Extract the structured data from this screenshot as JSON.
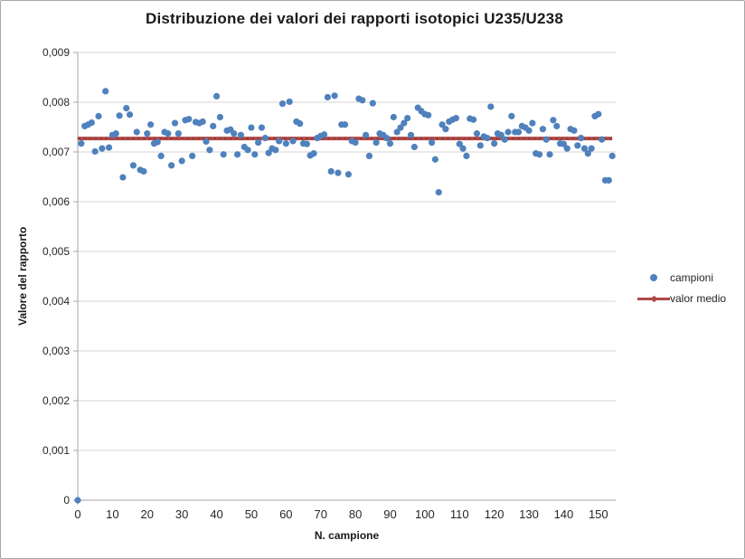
{
  "colors": {
    "points": "#4F81BD",
    "mean_line": "#B04A47",
    "mean_line_dash": "#963634",
    "grid": "#D6D6D6",
    "axis": "#A6A6A6",
    "tick_text": "#262626"
  },
  "chart_data": {
    "type": "scatter",
    "title": "Distribuzione dei valori dei rapporti isotopici U235/U238",
    "xlabel": "N. campione",
    "ylabel": "Valore del rapporto",
    "axes": {
      "xlim": [
        0,
        155
      ],
      "ylim": [
        0,
        0.009
      ],
      "xtick_values": [
        0,
        10,
        20,
        30,
        40,
        50,
        60,
        70,
        80,
        90,
        100,
        110,
        120,
        130,
        140,
        150
      ],
      "xtick_labels": [
        "0",
        "10",
        "20",
        "30",
        "40",
        "50",
        "60",
        "70",
        "80",
        "90",
        "100",
        "110",
        "120",
        "130",
        "140",
        "150"
      ],
      "ytick_values": [
        0,
        0.001,
        0.002,
        0.003,
        0.004,
        0.005,
        0.006,
        0.007,
        0.008,
        0.009
      ],
      "ytick_labels": [
        "0",
        "0,001",
        "0,002",
        "0,003",
        "0,004",
        "0,005",
        "0,006",
        "0,007",
        "0,008",
        "0,009"
      ],
      "grid": "horizontal"
    },
    "legend": {
      "position": "right",
      "entries": [
        {
          "label": "campioni",
          "marker": "dot"
        },
        {
          "label": "valor medio",
          "marker": "line"
        }
      ]
    },
    "series": [
      {
        "name": "campioni",
        "x_rule": "sample index 0..154",
        "y": [
          0,
          0.00717,
          0.00752,
          0.00755,
          0.00759,
          0.00701,
          0.00772,
          0.00707,
          0.00822,
          0.00709,
          0.00734,
          0.00737,
          0.00773,
          0.00649,
          0.00788,
          0.00775,
          0.00673,
          0.0074,
          0.00664,
          0.00661,
          0.00737,
          0.00755,
          0.00717,
          0.0072,
          0.00692,
          0.0074,
          0.00737,
          0.00673,
          0.00758,
          0.00737,
          0.00682,
          0.00764,
          0.00766,
          0.00692,
          0.0076,
          0.00758,
          0.00761,
          0.00721,
          0.00704,
          0.00752,
          0.00812,
          0.0077,
          0.00695,
          0.00743,
          0.00745,
          0.00737,
          0.00695,
          0.00734,
          0.0071,
          0.00704,
          0.00749,
          0.00695,
          0.00719,
          0.00749,
          0.00728,
          0.00698,
          0.00707,
          0.00704,
          0.00722,
          0.00797,
          0.00717,
          0.00801,
          0.00722,
          0.00761,
          0.00757,
          0.00717,
          0.00716,
          0.00693,
          0.00697,
          0.00728,
          0.00732,
          0.00735,
          0.0081,
          0.00661,
          0.00813,
          0.00658,
          0.00755,
          0.00755,
          0.00655,
          0.00722,
          0.00719,
          0.00807,
          0.00804,
          0.00734,
          0.00692,
          0.00798,
          0.00719,
          0.00737,
          0.00734,
          0.00728,
          0.00717,
          0.0077,
          0.0074,
          0.00749,
          0.00758,
          0.00768,
          0.00734,
          0.0071,
          0.00789,
          0.00782,
          0.00776,
          0.00774,
          0.00719,
          0.00685,
          0.00619,
          0.00755,
          0.00746,
          0.00761,
          0.00765,
          0.00768,
          0.00716,
          0.00707,
          0.00692,
          0.00767,
          0.00765,
          0.00737,
          0.00713,
          0.00731,
          0.00728,
          0.00791,
          0.00717,
          0.00737,
          0.00734,
          0.00725,
          0.0074,
          0.00772,
          0.0074,
          0.0074,
          0.00752,
          0.00749,
          0.00743,
          0.00758,
          0.00697,
          0.00695,
          0.00746,
          0.00725,
          0.00695,
          0.00764,
          0.00752,
          0.00717,
          0.00716,
          0.00707,
          0.00746,
          0.00743,
          0.00713,
          0.00728,
          0.00707,
          0.00697,
          0.00707,
          0.00772,
          0.00776,
          0.00725,
          0.00643,
          0.00643,
          0.00692
        ]
      }
    ],
    "mean_line": {
      "name": "valor medio",
      "value": 0.00727,
      "x_start": 0,
      "x_end": 154
    }
  }
}
